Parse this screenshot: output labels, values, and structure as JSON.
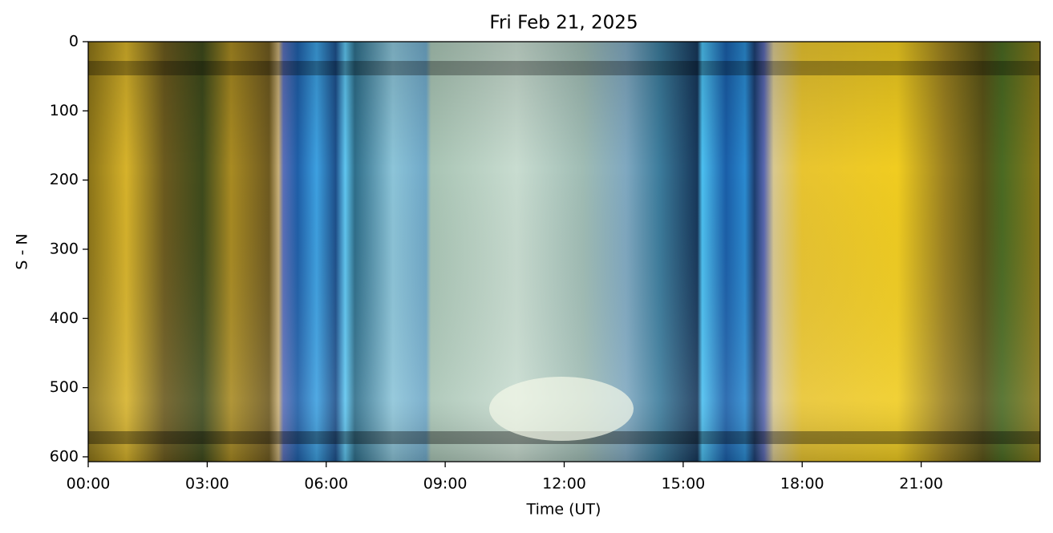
{
  "chart_data": {
    "type": "image",
    "title": "Fri Feb 21, 2025",
    "xlabel": "Time (UT)",
    "ylabel": "S - N",
    "xlim": [
      0,
      24
    ],
    "xticks": [
      {
        "value": 0,
        "label": "00:00"
      },
      {
        "value": 3,
        "label": "03:00"
      },
      {
        "value": 6,
        "label": "06:00"
      },
      {
        "value": 9,
        "label": "09:00"
      },
      {
        "value": 12,
        "label": "12:00"
      },
      {
        "value": 15,
        "label": "15:00"
      },
      {
        "value": 18,
        "label": "18:00"
      },
      {
        "value": 21,
        "label": "21:00"
      }
    ],
    "ylim": [
      607,
      0
    ],
    "yticks": [
      0,
      100,
      200,
      300,
      400,
      500,
      600
    ]
  }
}
